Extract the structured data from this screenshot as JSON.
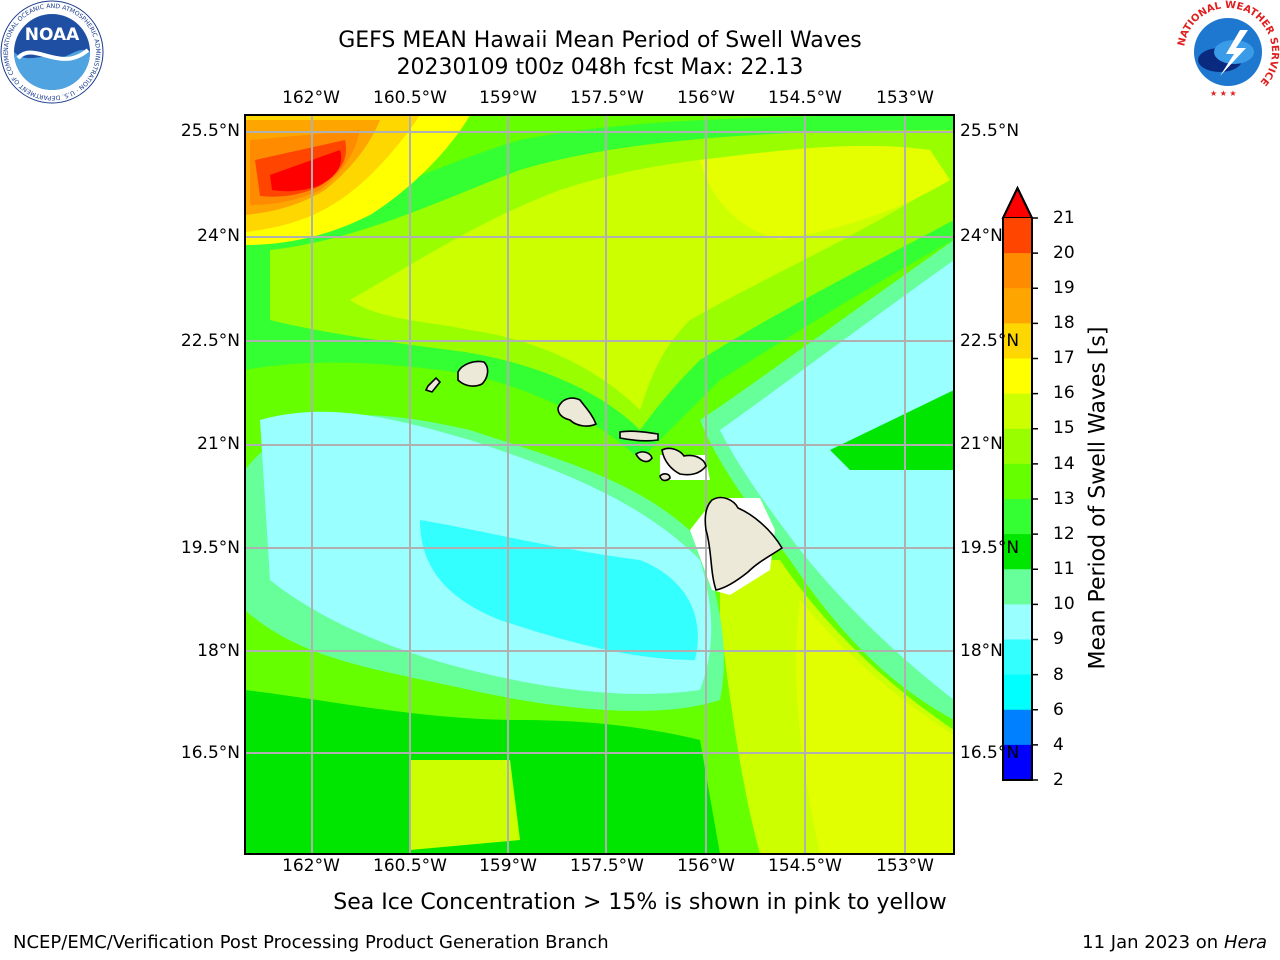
{
  "title": {
    "line1": "GEFS MEAN Hawaii Mean Period of Swell Waves",
    "line2": "20230109 t00z 048h fcst   Max: 22.13"
  },
  "map": {
    "lon_labels": [
      "162°W",
      "160.5°W",
      "159°W",
      "157.5°W",
      "156°W",
      "154.5°W",
      "153°W"
    ],
    "lat_labels": [
      "25.5°N",
      "24°N",
      "22.5°N",
      "21°N",
      "19.5°N",
      "18°N",
      "16.5°N"
    ]
  },
  "colorbar": {
    "label": "Mean Period of Swell Waves [s]",
    "ticks": [
      "21",
      "20",
      "19",
      "18",
      "17",
      "16",
      "15",
      "14",
      "13",
      "12",
      "11",
      "10",
      "9",
      "8",
      "6",
      "4",
      "2"
    ],
    "colors": [
      "#ff0000",
      "#ff4500",
      "#ff8c00",
      "#ffa500",
      "#ffd700",
      "#ffff00",
      "#ccff00",
      "#99ff00",
      "#66ff00",
      "#33ff33",
      "#00e600",
      "#66ff99",
      "#99ffff",
      "#33ffff",
      "#00ffff",
      "#0080ff",
      "#0000ff"
    ]
  },
  "note": "Sea Ice Concentration > 15% is shown in pink to yellow",
  "footer": {
    "left": "NCEP/EMC/Verification Post Processing Product Generation Branch",
    "right_date": "11 Jan 2023 on ",
    "right_machine": "Hera"
  },
  "logos": {
    "noaa": "NOAA",
    "noaa_ring": "NATIONAL OCEANIC AND ATMOSPHERIC ADMINISTRATION · U.S. DEPARTMENT OF COMMERCE",
    "nws_ring": "NATIONAL WEATHER SERVICE"
  }
}
